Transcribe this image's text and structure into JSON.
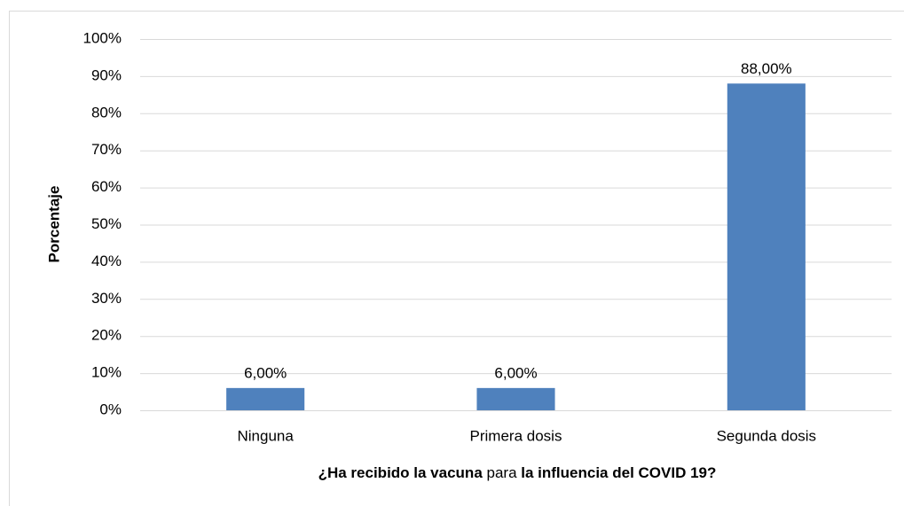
{
  "chart_data": {
    "type": "bar",
    "categories": [
      "Ninguna",
      "Primera dosis",
      "Segunda dosis"
    ],
    "values": [
      6,
      6,
      88
    ],
    "value_labels": [
      "6,00%",
      "6,00%",
      "88,00%"
    ],
    "color": "#4f81bd",
    "ylabel": "Porcentaje",
    "xlabel": [
      {
        "text": "¿Ha recibido la vacuna",
        "bold": true
      },
      {
        "text": " para ",
        "bold": false
      },
      {
        "text": "la influencia del COVID 19?",
        "bold": true
      }
    ],
    "ylim": [
      0,
      100
    ],
    "yticks": [
      {
        "value": 0,
        "label": "0%"
      },
      {
        "value": 10,
        "label": "10%"
      },
      {
        "value": 20,
        "label": "20%"
      },
      {
        "value": 30,
        "label": "30%"
      },
      {
        "value": 40,
        "label": "40%"
      },
      {
        "value": 50,
        "label": "50%"
      },
      {
        "value": 60,
        "label": "60%"
      },
      {
        "value": 70,
        "label": "70%"
      },
      {
        "value": 80,
        "label": "80%"
      },
      {
        "value": 90,
        "label": "90%"
      },
      {
        "value": 100,
        "label": "100%"
      }
    ],
    "grid": true
  }
}
